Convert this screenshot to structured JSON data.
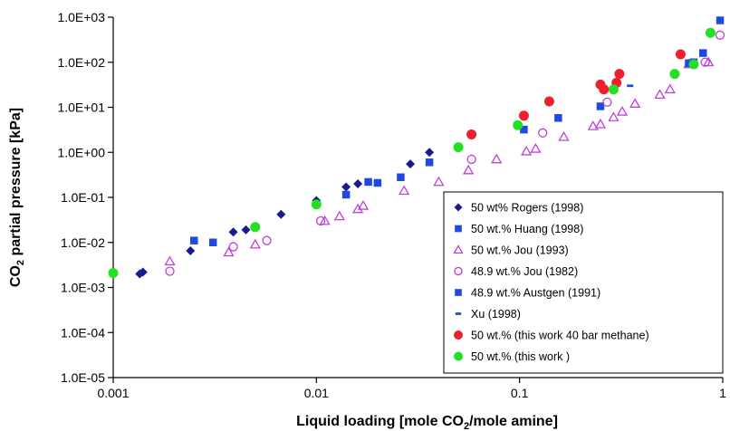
{
  "chart_data": {
    "type": "scatter",
    "xscale": "log",
    "yscale": "log",
    "xlim": [
      0.001,
      1
    ],
    "ylim": [
      1e-05,
      1000
    ],
    "x_ticks": [
      {
        "value": 0.001,
        "label": "0.001"
      },
      {
        "value": 0.01,
        "label": "0.01"
      },
      {
        "value": 0.1,
        "label": "0.1"
      },
      {
        "value": 1,
        "label": "1"
      }
    ],
    "y_ticks": [
      {
        "value": 1e-05,
        "label": "1.0E-05"
      },
      {
        "value": 0.0001,
        "label": "1.0E-04"
      },
      {
        "value": 0.001,
        "label": "1.0E-03"
      },
      {
        "value": 0.01,
        "label": "1.0E-02"
      },
      {
        "value": 0.1,
        "label": "1.0E-01"
      },
      {
        "value": 1,
        "label": "1.0E+00"
      },
      {
        "value": 10,
        "label": "1.0E+01"
      },
      {
        "value": 100,
        "label": "1.0E+02"
      },
      {
        "value": 1000,
        "label": "1.0E+03"
      }
    ],
    "xlabel": {
      "main": "Liquid loading [mole CO",
      "sub": "2",
      "rest": "/mole amine]"
    },
    "ylabel": {
      "main": "CO",
      "sub": "2",
      "rest": " partial pressure [kPa]"
    },
    "grid": false,
    "legend_position": "bottom-right",
    "series": [
      {
        "name": "50 wt% Rogers (1998)",
        "marker": "diamond",
        "color": "#1a1a8c",
        "points": [
          [
            0.00135,
            0.002
          ],
          [
            0.0014,
            0.0022
          ],
          [
            0.0024,
            0.0065
          ],
          [
            0.0039,
            0.017
          ],
          [
            0.0045,
            0.019
          ],
          [
            0.0067,
            0.042
          ],
          [
            0.01,
            0.085
          ],
          [
            0.014,
            0.17
          ],
          [
            0.016,
            0.2
          ],
          [
            0.029,
            0.55
          ],
          [
            0.036,
            1.0
          ]
        ]
      },
      {
        "name": "50 wt.% Huang (1998)",
        "marker": "square",
        "color": "#1f4ae0",
        "points": [
          [
            0.0025,
            0.011
          ],
          [
            0.0031,
            0.01
          ],
          [
            0.014,
            0.115
          ],
          [
            0.018,
            0.22
          ],
          [
            0.026,
            0.28
          ],
          [
            0.036,
            0.6
          ],
          [
            0.105,
            3.2
          ],
          [
            0.155,
            5.8
          ],
          [
            0.25,
            10.5
          ],
          [
            0.72,
            100
          ],
          [
            0.8,
            160
          ]
        ]
      },
      {
        "name": "50 wt.% Jou (1993)",
        "marker": "triangle",
        "color": "#c040d8",
        "points": [
          [
            0.0019,
            0.0038
          ],
          [
            0.0037,
            0.006
          ],
          [
            0.005,
            0.009
          ],
          [
            0.011,
            0.03
          ],
          [
            0.013,
            0.038
          ],
          [
            0.016,
            0.055
          ],
          [
            0.017,
            0.065
          ],
          [
            0.027,
            0.14
          ],
          [
            0.04,
            0.22
          ],
          [
            0.056,
            0.4
          ],
          [
            0.077,
            0.7
          ],
          [
            0.108,
            1.05
          ],
          [
            0.12,
            1.2
          ],
          [
            0.165,
            2.2
          ],
          [
            0.23,
            3.8
          ],
          [
            0.25,
            4.2
          ],
          [
            0.29,
            6
          ],
          [
            0.32,
            8
          ],
          [
            0.37,
            12
          ],
          [
            0.49,
            19
          ],
          [
            0.55,
            25
          ],
          [
            0.68,
            90
          ],
          [
            0.85,
            100
          ]
        ]
      },
      {
        "name": "48.9 wt.% Jou (1982)",
        "marker": "circle-open",
        "color": "#c040d8",
        "points": [
          [
            0.0019,
            0.0023
          ],
          [
            0.0039,
            0.008
          ],
          [
            0.0057,
            0.011
          ],
          [
            0.0105,
            0.03
          ],
          [
            0.058,
            0.7
          ],
          [
            0.13,
            2.7
          ],
          [
            0.27,
            13
          ],
          [
            0.82,
            100
          ],
          [
            0.97,
            400
          ]
        ]
      },
      {
        "name": "48.9 wt.% Austgen (1991)",
        "marker": "square",
        "color": "#1f4ae0",
        "points": [
          [
            0.02,
            0.21
          ],
          [
            0.68,
            95
          ],
          [
            0.97,
            850
          ]
        ]
      },
      {
        "name": "Xu (1998)",
        "marker": "dash",
        "color": "#1f4ae0",
        "points": [
          [
            0.35,
            30
          ],
          [
            0.87,
            400
          ]
        ]
      },
      {
        "name": "50 wt.% (this work 40 bar methane)",
        "marker": "circle",
        "color": "#ee1f2e",
        "points": [
          [
            0.058,
            2.5
          ],
          [
            0.105,
            6.5
          ],
          [
            0.14,
            13.5
          ],
          [
            0.25,
            32
          ],
          [
            0.26,
            25
          ],
          [
            0.3,
            35
          ],
          [
            0.31,
            55
          ],
          [
            0.62,
            150
          ]
        ]
      },
      {
        "name": "50 wt.% (this work )",
        "marker": "circle",
        "color": "#22e022",
        "points": [
          [
            0.001,
            0.0021
          ],
          [
            0.005,
            0.022
          ],
          [
            0.01,
            0.07
          ],
          [
            0.05,
            1.3
          ],
          [
            0.098,
            4
          ],
          [
            0.29,
            25
          ],
          [
            0.58,
            55
          ],
          [
            0.72,
            90
          ],
          [
            0.87,
            450
          ]
        ]
      }
    ]
  }
}
